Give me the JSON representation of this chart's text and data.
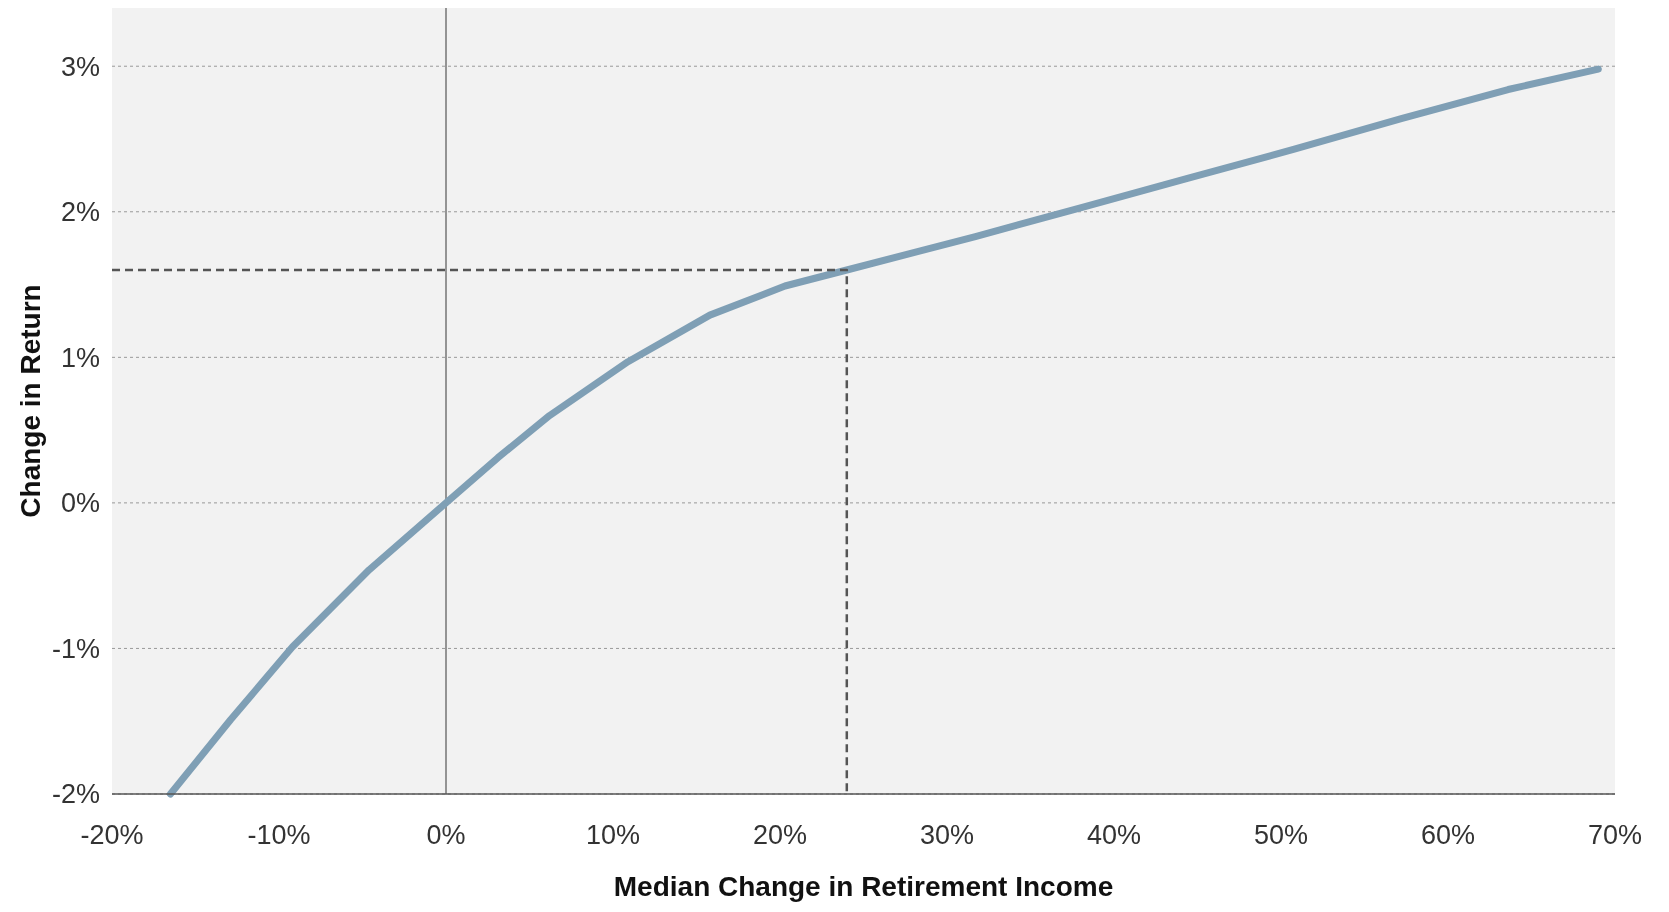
{
  "chart_data": {
    "type": "line",
    "xlabel": "Median Change in Retirement Income",
    "ylabel": "Change in Return",
    "xlim": [
      -20,
      70
    ],
    "ylim": [
      -2,
      3.4
    ],
    "xticks": [
      {
        "value": -20,
        "label": "-20%"
      },
      {
        "value": -10,
        "label": "-10%"
      },
      {
        "value": 0,
        "label": "0%"
      },
      {
        "value": 10,
        "label": "10%"
      },
      {
        "value": 20,
        "label": "20%"
      },
      {
        "value": 30,
        "label": "30%"
      },
      {
        "value": 40,
        "label": "40%"
      },
      {
        "value": 50,
        "label": "50%"
      },
      {
        "value": 60,
        "label": "60%"
      },
      {
        "value": 70,
        "label": "70%"
      }
    ],
    "yticks": [
      {
        "value": -2,
        "label": "-2%"
      },
      {
        "value": -1,
        "label": "-1%"
      },
      {
        "value": 0,
        "label": "0%"
      },
      {
        "value": 1,
        "label": "1%"
      },
      {
        "value": 2,
        "label": "2%"
      },
      {
        "value": 3,
        "label": "3%"
      }
    ],
    "grid": "y",
    "ref_lines": [
      {
        "axis": "x",
        "value": 0,
        "color": "#555555"
      }
    ],
    "series": [
      {
        "color": "#7f9fb5",
        "x": [
          -16.5,
          -12.9,
          -9.2,
          -4.6,
          0,
          3.1,
          6.2,
          10.9,
          15.8,
          20.3,
          24,
          31.7,
          38.1,
          44.4,
          50.8,
          57.2,
          63.6,
          69
        ],
        "values": [
          -2,
          -1.49,
          -0.99,
          -0.46,
          0,
          0.31,
          0.6,
          0.97,
          1.29,
          1.49,
          1.6,
          1.83,
          2.03,
          2.23,
          2.43,
          2.64,
          2.84,
          2.98
        ]
      },
      {
        "color": "#555555",
        "line_style": "dashed",
        "x": [
          -20,
          24,
          24
        ],
        "values": [
          1.6,
          1.6,
          -2
        ]
      }
    ]
  }
}
